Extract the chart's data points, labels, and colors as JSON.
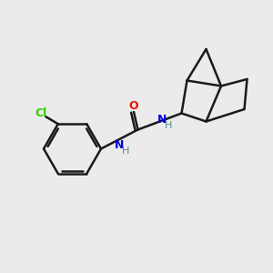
{
  "background_color": "#ebebeb",
  "bond_color": "#1a1a1a",
  "bond_width": 1.8,
  "cl_color": "#33cc00",
  "o_color": "#ee1100",
  "n_color": "#0000dd",
  "h_color": "#558888",
  "figsize": [
    3.0,
    3.0
  ],
  "dpi": 100,
  "xlim": [
    0,
    10
  ],
  "ylim": [
    0,
    10
  ]
}
